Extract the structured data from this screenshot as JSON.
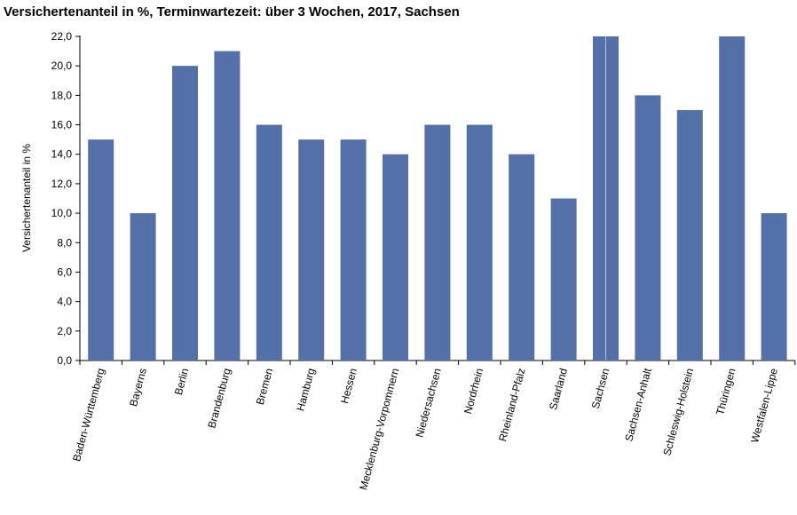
{
  "chart_data": {
    "type": "bar",
    "title": "Versichertenanteil in %, Terminwartezeit: über 3 Wochen, 2017, Sachsen",
    "xlabel": "",
    "ylabel": "Versichertenanteil in %",
    "categories": [
      "Baden-Württemberg",
      "Bayerns",
      "Berlin",
      "Brandenburg",
      "Bremen",
      "Hamburg",
      "Hessen",
      "Mecklenburg-Vorpommern",
      "Niedersachsen",
      "Nordrhein",
      "Rheinland-Pfalz",
      "Saarland",
      "Sachsen",
      "Sachsen-Anhalt",
      "Schleswig-Holstein",
      "Thüringen",
      "Westfalen-Lippe"
    ],
    "values": [
      15,
      10,
      20,
      21,
      16,
      15,
      15,
      14,
      16,
      16,
      14,
      11,
      22,
      18,
      17,
      22,
      10
    ],
    "ylim": [
      0,
      22
    ],
    "yticks": [
      "0,0",
      "2,0",
      "4,0",
      "6,0",
      "8,0",
      "10,0",
      "12,0",
      "14,0",
      "16,0",
      "18,0",
      "20,0",
      "22,0"
    ],
    "grid": false,
    "legend": "none",
    "highlight_category": "Sachsen",
    "bar_color": "#5470a9",
    "axis_color": "#000000"
  }
}
